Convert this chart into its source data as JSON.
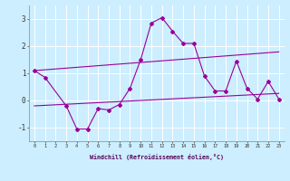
{
  "xlabel": "Windchill (Refroidissement éolien,°C)",
  "background_color": "#cceeff",
  "grid_color": "#ffffff",
  "line_color": "#990099",
  "x": [
    0,
    1,
    2,
    3,
    4,
    5,
    6,
    7,
    8,
    9,
    10,
    11,
    12,
    13,
    14,
    15,
    16,
    17,
    18,
    19,
    20,
    21,
    22,
    23
  ],
  "main_y": [
    1.1,
    0.85,
    null,
    -0.2,
    -1.05,
    -1.05,
    -0.3,
    -0.35,
    -0.15,
    0.45,
    1.5,
    2.85,
    3.05,
    2.55,
    2.1,
    2.1,
    0.9,
    0.35,
    0.35,
    1.45,
    0.45,
    0.05,
    0.7,
    0.05
  ],
  "upper_y": [
    1.1,
    1.13,
    1.16,
    1.19,
    1.22,
    1.25,
    1.28,
    1.31,
    1.34,
    1.37,
    1.4,
    1.43,
    1.46,
    1.49,
    1.52,
    1.55,
    1.58,
    1.61,
    1.64,
    1.67,
    1.7,
    1.73,
    1.76,
    1.79
  ],
  "lower_y": [
    -0.2,
    -0.18,
    -0.16,
    -0.14,
    -0.12,
    -0.1,
    -0.08,
    -0.06,
    -0.04,
    -0.02,
    0.0,
    0.02,
    0.04,
    0.06,
    0.08,
    0.1,
    0.12,
    0.14,
    0.16,
    0.18,
    0.2,
    0.22,
    0.24,
    0.26
  ],
  "ylim": [
    -1.5,
    3.5
  ],
  "yticks": [
    -1,
    0,
    1,
    2,
    3
  ],
  "xlim": [
    -0.5,
    23.5
  ]
}
